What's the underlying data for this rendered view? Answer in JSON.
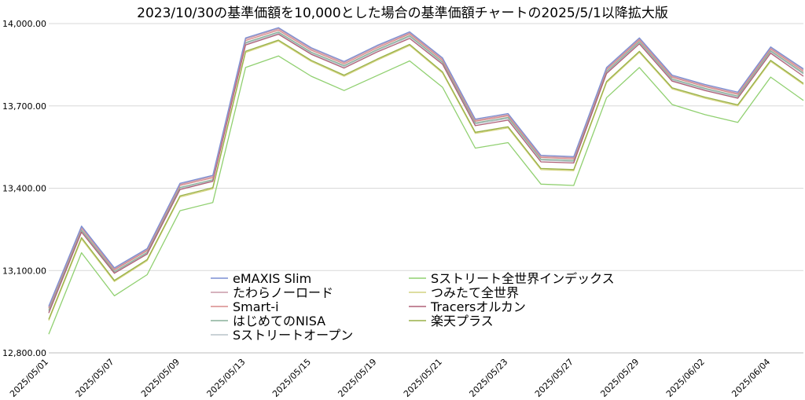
{
  "chart_data": {
    "type": "line",
    "title": "2023/10/30の基準価額を10,000とした場合の基準価額チャートの2025/5/1以降拡大版",
    "xlabel": "",
    "ylabel": "",
    "ylim": [
      12800,
      14050
    ],
    "yticks": [
      12800,
      13100,
      13400,
      13700,
      14000
    ],
    "ytick_labels": [
      "12,800.00",
      "13,100.00",
      "13,400.00",
      "13,700.00",
      "14,000.00"
    ],
    "x": [
      "2025/05/01",
      "2025/05/02",
      "2025/05/07",
      "2025/05/08",
      "2025/05/09",
      "2025/05/12",
      "2025/05/13",
      "2025/05/14",
      "2025/05/15",
      "2025/05/16",
      "2025/05/19",
      "2025/05/20",
      "2025/05/21",
      "2025/05/22",
      "2025/05/23",
      "2025/05/26",
      "2025/05/27",
      "2025/05/28",
      "2025/05/29",
      "2025/05/30",
      "2025/06/02",
      "2025/06/03",
      "2025/06/04",
      "2025/06/05"
    ],
    "xtick_labels": [
      "2025/05/01",
      "2025/05/07",
      "2025/05/09",
      "2025/05/13",
      "2025/05/15",
      "2025/05/19",
      "2025/05/21",
      "2025/05/23",
      "2025/05/27",
      "2025/05/29",
      "2025/06/02",
      "2025/06/04"
    ],
    "grid": "horizontal",
    "legend_position": "bottom-center",
    "series": [
      {
        "name": "eMAXIS Slim",
        "color": "#7b8fd4",
        "values": [
          12970,
          13262,
          13110,
          13180,
          13418,
          13447,
          13948,
          13985,
          13912,
          13862,
          13920,
          13970,
          13875,
          13652,
          13672,
          13520,
          13515,
          13840,
          13948,
          13812,
          13778,
          13750,
          13915,
          13835
        ]
      },
      {
        "name": "たわらノーロード",
        "color": "#c99aa8",
        "values": [
          12966,
          13258,
          13106,
          13176,
          13414,
          13443,
          13944,
          13981,
          13908,
          13858,
          13916,
          13966,
          13871,
          13648,
          13668,
          13516,
          13511,
          13836,
          13944,
          13808,
          13774,
          13746,
          13911,
          13831
        ]
      },
      {
        "name": "Smart-i",
        "color": "#d98a8a",
        "values": [
          12962,
          13255,
          13102,
          13172,
          13410,
          13438,
          13938,
          13976,
          13903,
          13853,
          13911,
          13962,
          13866,
          13644,
          13664,
          13512,
          13507,
          13832,
          13940,
          13804,
          13770,
          13742,
          13907,
          13826
        ]
      },
      {
        "name": "はじめてのNISA",
        "color": "#88b09a",
        "values": [
          12955,
          13248,
          13096,
          13166,
          13403,
          13431,
          13931,
          13969,
          13896,
          13847,
          13905,
          13956,
          13860,
          13638,
          13658,
          13506,
          13501,
          13826,
          13934,
          13798,
          13764,
          13736,
          13901,
          13820
        ]
      },
      {
        "name": "Sストリートオープン",
        "color": "#b8c4c8",
        "values": [
          12950,
          13244,
          13092,
          13162,
          13399,
          13427,
          13927,
          13965,
          13892,
          13843,
          13901,
          13952,
          13856,
          13634,
          13654,
          13502,
          13497,
          13822,
          13930,
          13794,
          13760,
          13732,
          13897,
          13816
        ]
      },
      {
        "name": "Sストリート全世界インデックス",
        "color": "#90d070",
        "values": [
          12868,
          13165,
          13008,
          13085,
          13318,
          13348,
          13840,
          13882,
          13808,
          13756,
          13810,
          13864,
          13768,
          13546,
          13566,
          13415,
          13410,
          13730,
          13840,
          13705,
          13668,
          13640,
          13805,
          13720
        ]
      },
      {
        "name": "つみたて全世界",
        "color": "#d4d480",
        "values": [
          12918,
          13215,
          13060,
          13136,
          13368,
          13398,
          13895,
          13936,
          13862,
          13808,
          13866,
          13920,
          13820,
          13600,
          13620,
          13468,
          13464,
          13785,
          13895,
          13762,
          13728,
          13700,
          13862,
          13778
        ]
      },
      {
        "name": "Tracersオルカン",
        "color": "#b06078",
        "values": [
          12945,
          13240,
          13090,
          13160,
          13395,
          13425,
          13922,
          13961,
          13888,
          13838,
          13896,
          13946,
          13852,
          13628,
          13648,
          13496,
          13492,
          13818,
          13926,
          13790,
          13756,
          13728,
          13892,
          13808
        ]
      },
      {
        "name": "楽天プラス",
        "color": "#98b048",
        "values": [
          12922,
          13220,
          13064,
          13140,
          13372,
          13402,
          13899,
          13940,
          13866,
          13812,
          13870,
          13924,
          13824,
          13604,
          13624,
          13472,
          13468,
          13789,
          13899,
          13766,
          13732,
          13704,
          13866,
          13782
        ]
      }
    ]
  }
}
